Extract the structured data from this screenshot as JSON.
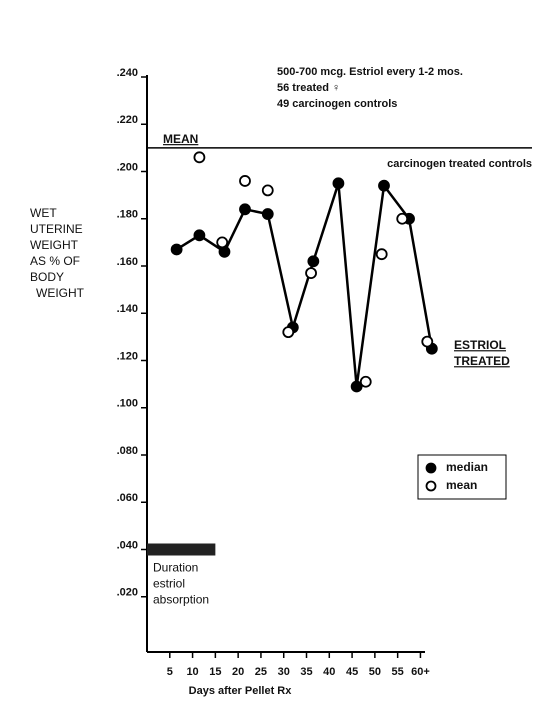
{
  "chart_data": {
    "type": "line",
    "header": [
      "500-700 mcg. Estriol every 1-2 mos.",
      "56 treated ♀",
      "49 carcinogen controls"
    ],
    "ylabel": [
      "WET",
      "UTERINE",
      "WEIGHT",
      "AS % OF",
      "BODY",
      "WEIGHT"
    ],
    "xlabel": "Days after Pellet Rx",
    "xlim": [
      0,
      61
    ],
    "ylim": [
      0,
      0.24
    ],
    "xticks": [
      5,
      10,
      15,
      20,
      25,
      30,
      35,
      40,
      45,
      50,
      55,
      {
        "value": 60,
        "label": "60+"
      }
    ],
    "yticks": [
      {
        "value": 0.02,
        "label": ".020"
      },
      {
        "value": 0.04,
        "label": ".040"
      },
      {
        "value": 0.06,
        "label": ".060"
      },
      {
        "value": 0.08,
        "label": ".080"
      },
      {
        "value": 0.1,
        "label": ".100"
      },
      {
        "value": 0.12,
        "label": ".120"
      },
      {
        "value": 0.14,
        "label": ".140"
      },
      {
        "value": 0.16,
        "label": ".160"
      },
      {
        "value": 0.18,
        "label": ".180"
      },
      {
        "value": 0.2,
        "label": ".200"
      },
      {
        "value": 0.22,
        "label": ".220"
      },
      {
        "value": 0.24,
        "label": ".240"
      }
    ],
    "reference_line": {
      "value": 0.21,
      "label": "MEAN",
      "note": "carcinogen treated controls"
    },
    "series_label": [
      "ESTRIOL",
      "TREATED"
    ],
    "absorption_bar": {
      "x": [
        0,
        15
      ],
      "y": 0.04,
      "label": [
        "Duration",
        "estriol",
        "absorption"
      ]
    },
    "series": [
      {
        "name": "median",
        "color": "#000000",
        "filled": true,
        "line": true,
        "x": [
          6.5,
          11.5,
          17,
          21.5,
          26.5,
          32,
          36.5,
          42,
          46,
          52,
          57.5,
          62.5
        ],
        "values": [
          0.167,
          0.173,
          0.166,
          0.184,
          0.182,
          0.134,
          0.162,
          0.195,
          0.109,
          0.194,
          0.18,
          0.125
        ]
      },
      {
        "name": "mean",
        "color": "#000000",
        "filled": false,
        "line": false,
        "x": [
          11.5,
          16.5,
          21.5,
          26.5,
          31,
          36,
          48,
          51.5,
          56,
          61.5
        ],
        "values": [
          0.206,
          0.17,
          0.196,
          0.192,
          0.132,
          0.157,
          0.111,
          0.165,
          0.18,
          0.128
        ]
      }
    ]
  }
}
